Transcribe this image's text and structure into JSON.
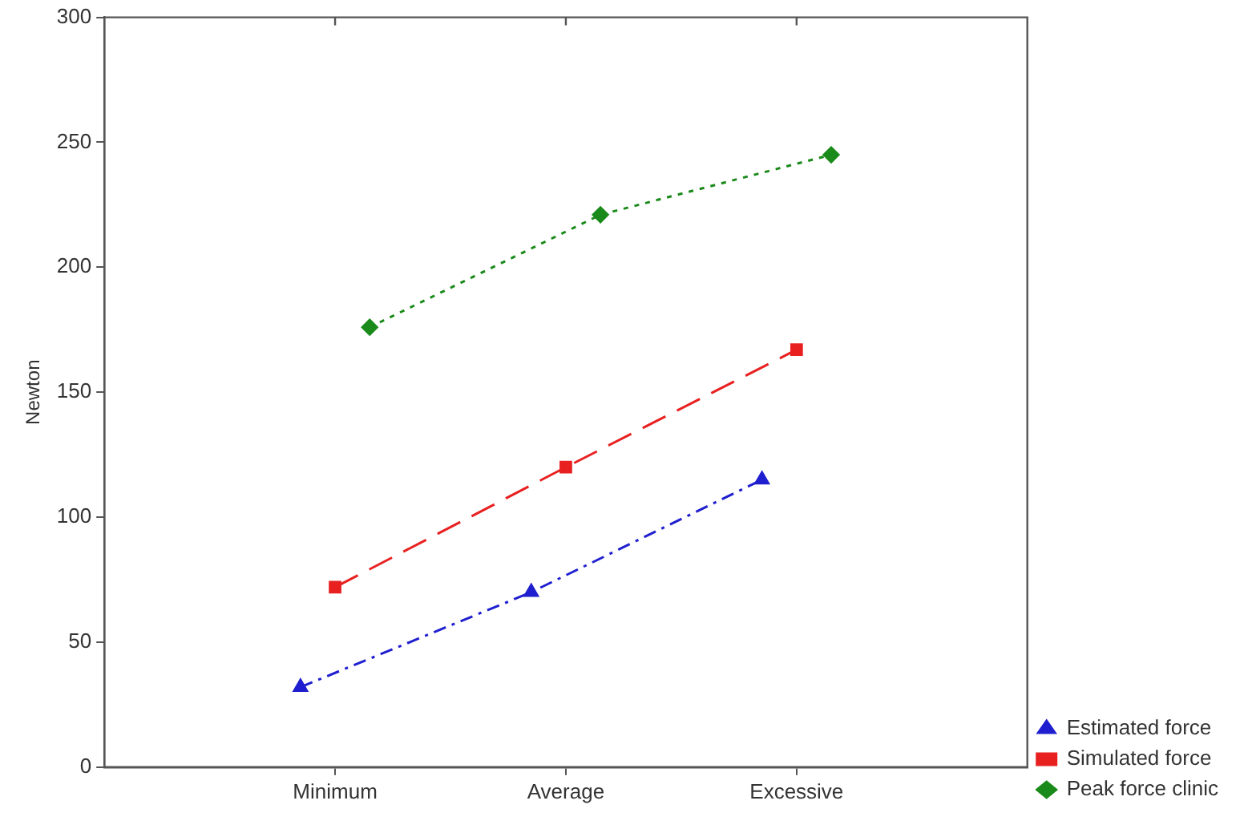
{
  "chart_data": {
    "type": "line",
    "ylabel": "Newton",
    "categories": [
      "Minimum",
      "Average",
      "Excessive"
    ],
    "series": [
      {
        "name": "Estimated force",
        "color": "#1f1fd0",
        "values": [
          32,
          70,
          115
        ],
        "marker": "triangle",
        "line_style": "dashdot"
      },
      {
        "name": "Simulated force",
        "color": "#e82020",
        "values": [
          72,
          120,
          167
        ],
        "marker": "square",
        "line_style": "dashed"
      },
      {
        "name": "Peak force clinic",
        "color": "#1a8a1a",
        "values": [
          176,
          221,
          245
        ],
        "marker": "diamond",
        "line_style": "dotted"
      }
    ],
    "ylim": [
      0,
      300
    ],
    "yticks": [
      0,
      50,
      100,
      150,
      200,
      250,
      300
    ],
    "grid": false,
    "legend": "bottom right"
  }
}
